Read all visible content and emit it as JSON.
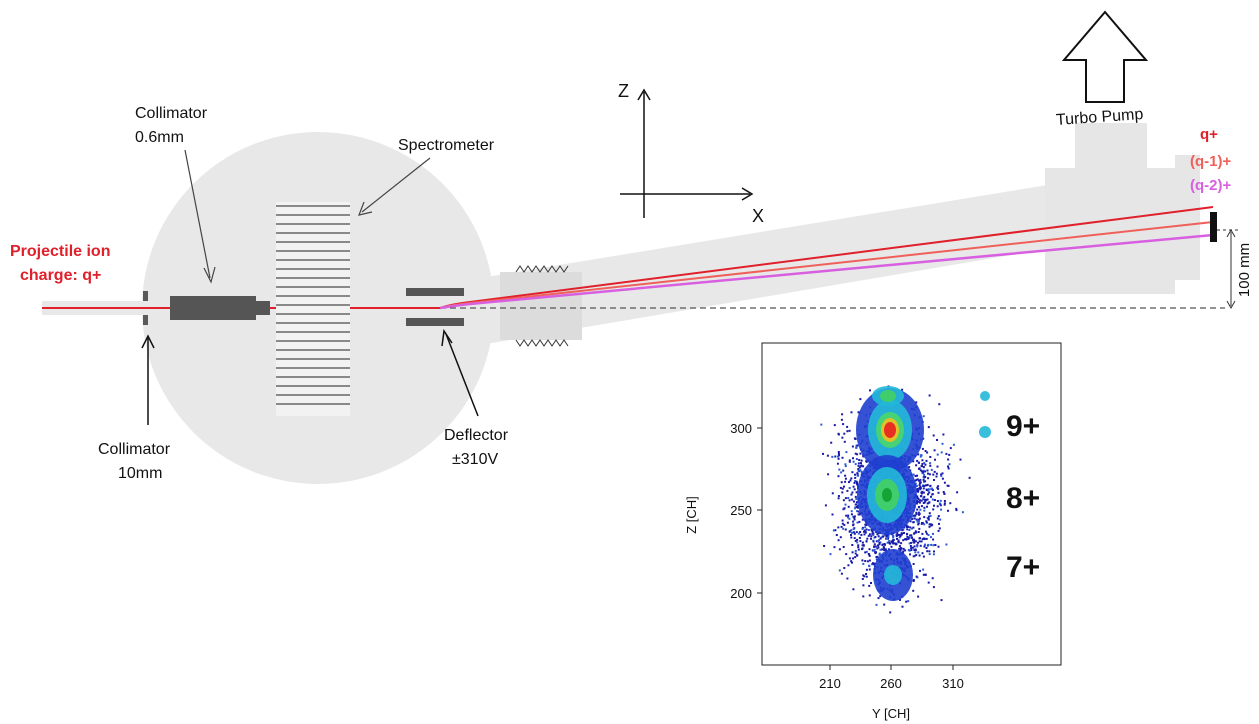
{
  "labels": {
    "projectile_line1": "Projectile ion",
    "projectile_line2": "charge: q+",
    "collimator_small_line1": "Collimator",
    "collimator_small_line2": "0.6mm",
    "collimator_large_line1": "Collimator",
    "collimator_large_line2": "10mm",
    "spectrometer": "Spectrometer",
    "deflector_line1": "Deflector",
    "deflector_line2": "±310V",
    "axis_z": "Z",
    "axis_x": "X",
    "turbo_pump": "Turbo Pump",
    "beam_q": "q+",
    "beam_q1": "(q-1)+",
    "beam_q2": "(q-2)+",
    "distance": "100 mm"
  },
  "colors": {
    "beam_q": "#e0202a",
    "beam_q1": "#f0605a",
    "beam_q2": "#d860e0",
    "chamber": "#e6e6e6",
    "component": "#5a5a5a"
  },
  "inset": {
    "x_ticks": [
      "210",
      "260",
      "310"
    ],
    "y_ticks": [
      "300",
      "250",
      "200"
    ],
    "xlabel": "Y [CH]",
    "ylabel": "Z [CH]",
    "charge_labels": [
      "9+",
      "8+",
      "7+"
    ]
  }
}
